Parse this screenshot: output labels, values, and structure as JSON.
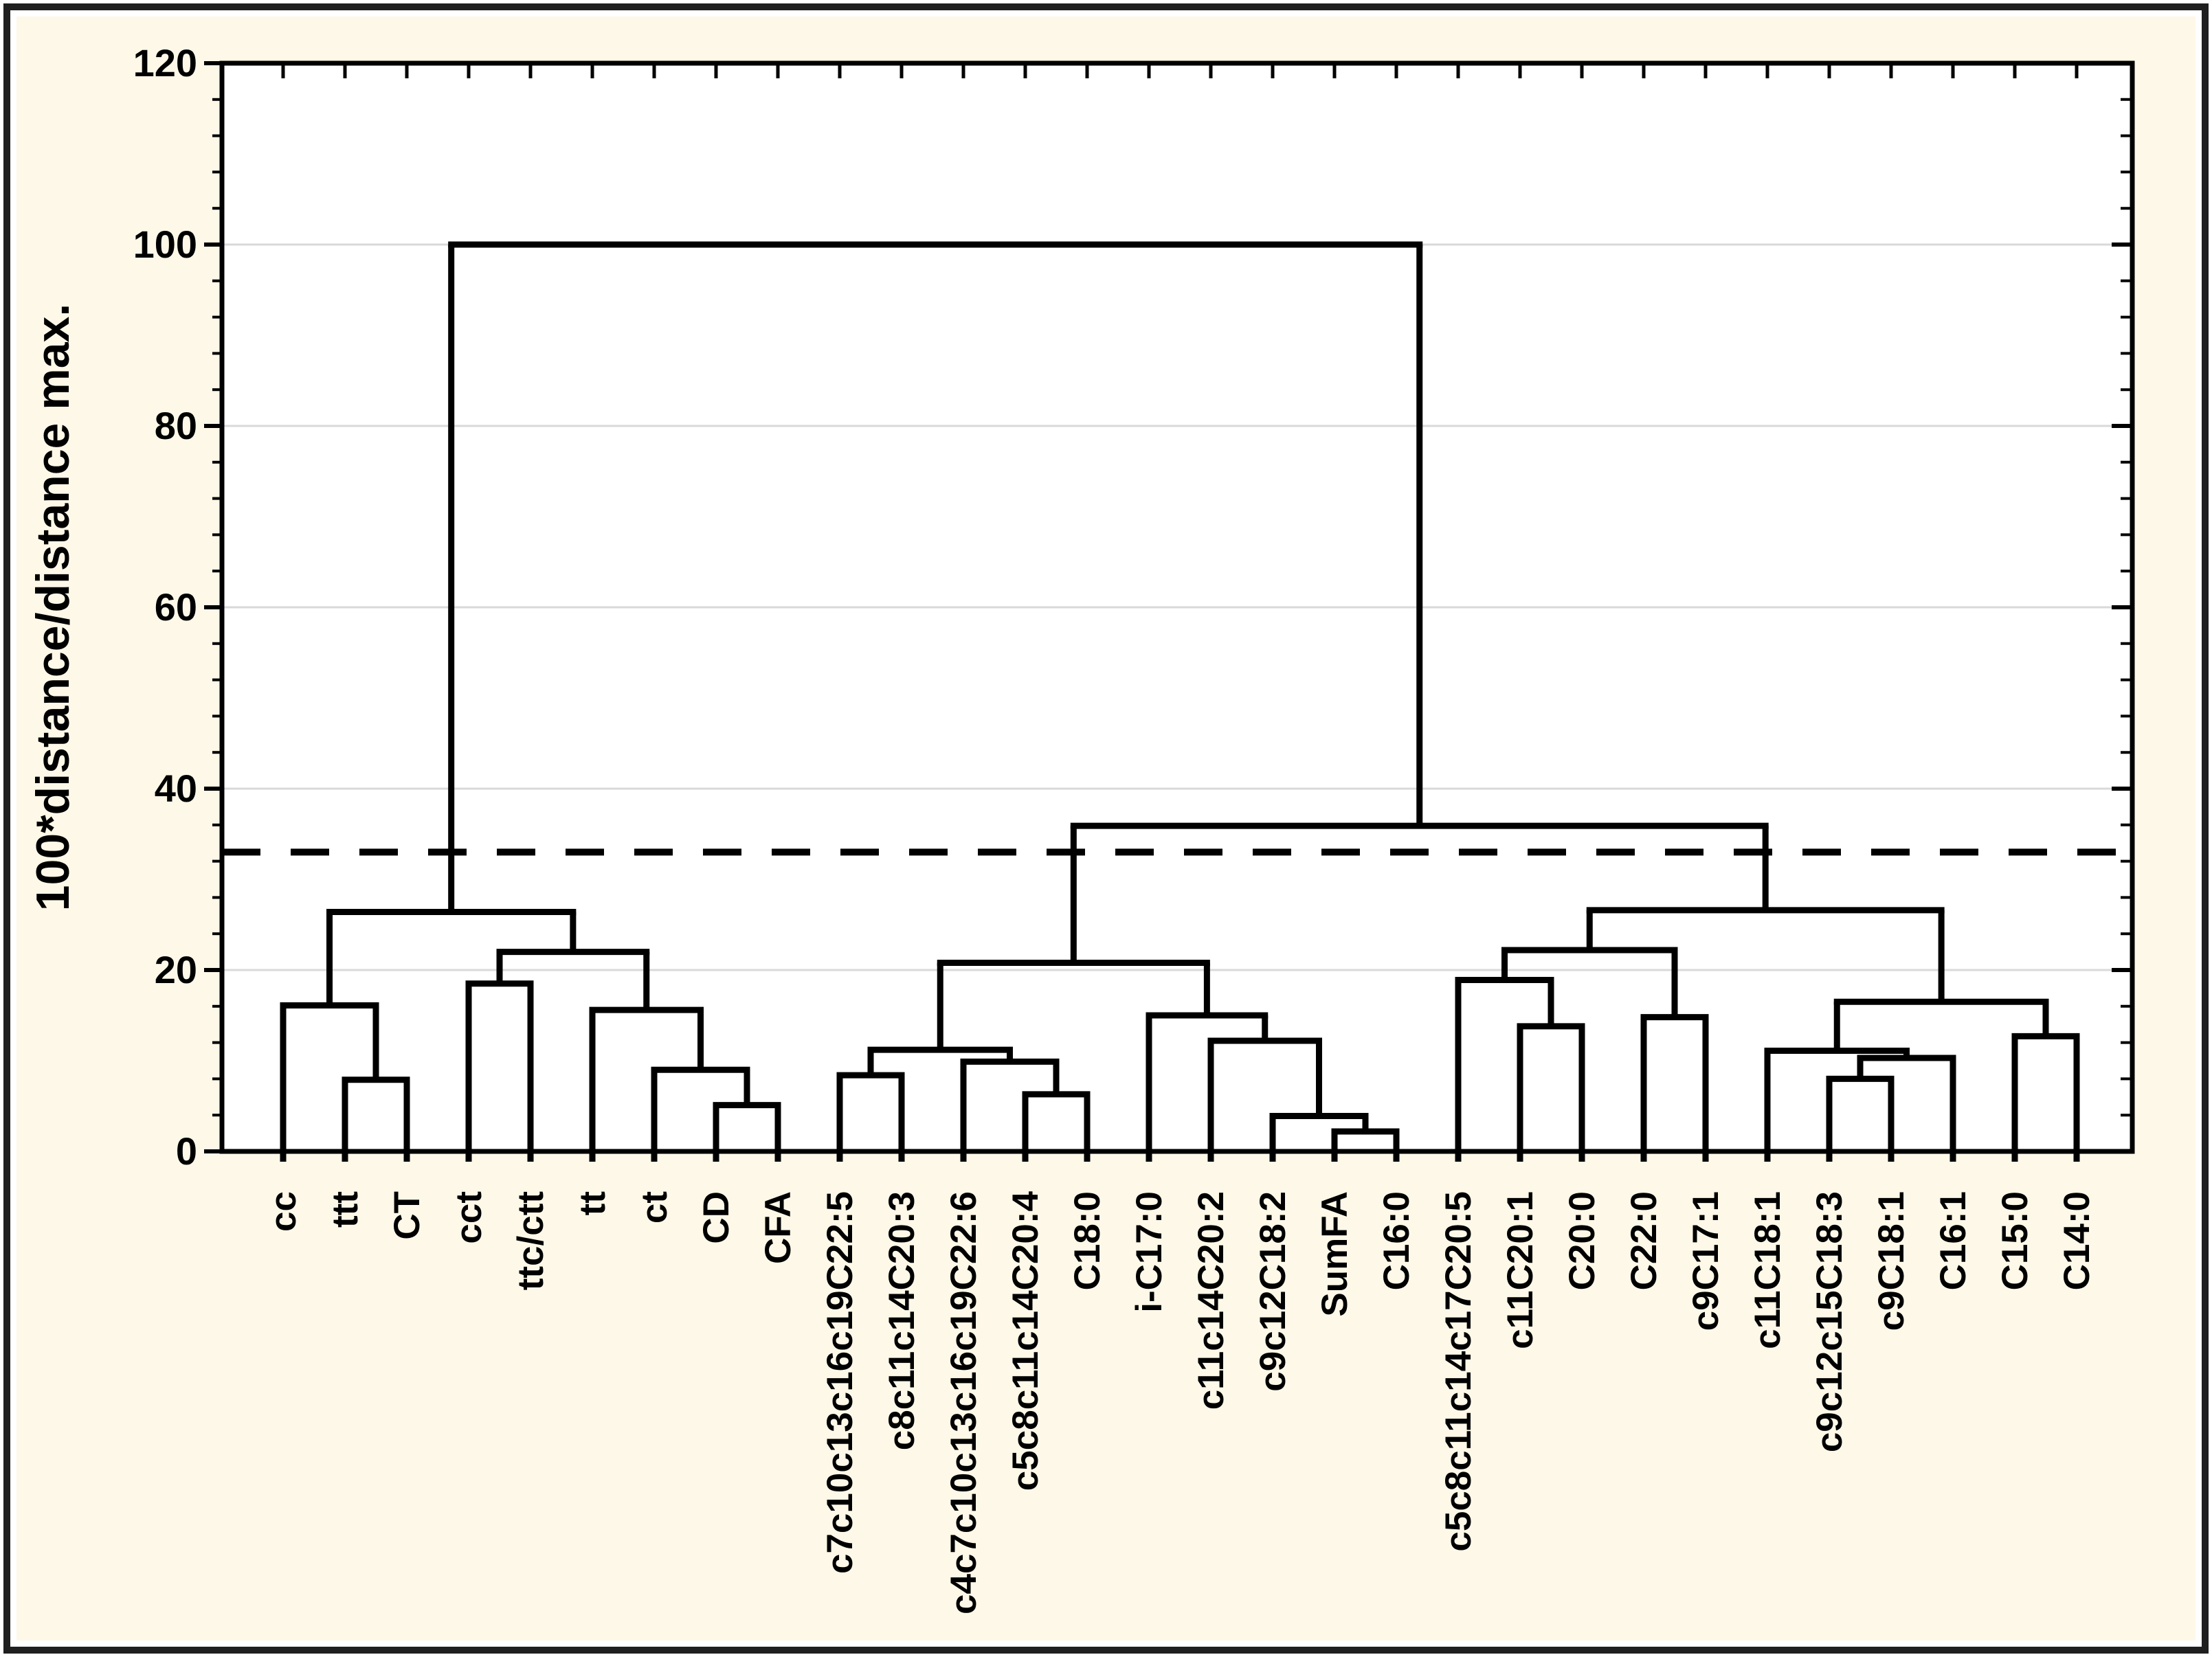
{
  "figure": {
    "background_color": "#fdf8e8",
    "frame_color": "#1f1f1f",
    "plot_background": "#ffffff",
    "line_color": "#000000",
    "gridline_color": "#d9d9d9"
  },
  "chart_data": {
    "type": "dendrogram",
    "title": "",
    "ylabel": "100*distance/distance max.",
    "xlabel": "",
    "y_axis": {
      "min": 0,
      "max": 120,
      "major_step": 20,
      "minor_step": 4,
      "tick_labels": [
        "0",
        "20",
        "40",
        "60",
        "80",
        "100",
        "120"
      ],
      "gridlines": [
        20,
        40,
        60,
        80,
        100
      ],
      "grid_on": true
    },
    "cutoff_line": {
      "value": 33,
      "style": "dashed"
    },
    "legend": null,
    "leaves": [
      "cc",
      "ttt",
      "CT",
      "cct",
      "ttc/ctt",
      "tt",
      "ct",
      "CD",
      "CFA",
      "c7c10c13c16c19C22:5",
      "c8c11c14C20:3",
      "c4c7c10c13c16c19C22:6",
      "c5c8c11c14C20:4",
      "C18:0",
      "i-C17:0",
      "c11c14C20:2",
      "c9c12C18:2",
      "SumFA",
      "C16:0",
      "c5c8c11c14c17C20:5",
      "c11C20:1",
      "C20:0",
      "C22:0",
      "c9C17:1",
      "c11C18:1",
      "c9c12c15C18:3",
      "c9C18:1",
      "C16:1",
      "C15:0",
      "C14:0"
    ],
    "merges": [
      [
        1,
        2,
        7.9
      ],
      [
        0,
        30,
        16.1
      ],
      [
        7,
        8,
        5.1
      ],
      [
        6,
        32,
        9.0
      ],
      [
        5,
        33,
        15.6
      ],
      [
        3,
        4,
        18.5
      ],
      [
        35,
        34,
        22.0
      ],
      [
        31,
        36,
        26.4
      ],
      [
        9,
        10,
        8.4
      ],
      [
        12,
        13,
        6.3
      ],
      [
        11,
        39,
        9.9
      ],
      [
        38,
        40,
        11.2
      ],
      [
        17,
        18,
        2.2
      ],
      [
        16,
        42,
        3.9
      ],
      [
        15,
        43,
        12.2
      ],
      [
        14,
        44,
        15.0
      ],
      [
        41,
        45,
        20.8
      ],
      [
        20,
        21,
        13.8
      ],
      [
        19,
        47,
        18.9
      ],
      [
        22,
        23,
        14.8
      ],
      [
        48,
        49,
        22.2
      ],
      [
        25,
        26,
        8.0
      ],
      [
        51,
        27,
        10.3
      ],
      [
        24,
        52,
        11.1
      ],
      [
        28,
        29,
        12.7
      ],
      [
        53,
        54,
        16.5
      ],
      [
        50,
        55,
        26.6
      ],
      [
        46,
        56,
        35.9
      ],
      [
        37,
        57,
        100
      ]
    ]
  }
}
